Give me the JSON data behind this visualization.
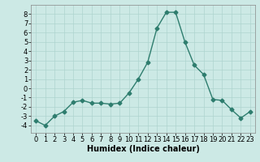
{
  "x": [
    0,
    1,
    2,
    3,
    4,
    5,
    6,
    7,
    8,
    9,
    10,
    11,
    12,
    13,
    14,
    15,
    16,
    17,
    18,
    19,
    20,
    21,
    22,
    23
  ],
  "y": [
    -3.5,
    -4.0,
    -3.0,
    -2.5,
    -1.5,
    -1.3,
    -1.6,
    -1.6,
    -1.7,
    -1.6,
    -0.5,
    1.0,
    2.8,
    6.5,
    8.2,
    8.2,
    5.0,
    2.5,
    1.5,
    -1.2,
    -1.3,
    -2.3,
    -3.2,
    -2.5
  ],
  "line_color": "#2e7d6e",
  "marker": "D",
  "markersize": 2.5,
  "linewidth": 1.0,
  "xlabel": "Humidex (Indice chaleur)",
  "ylim": [
    -4.8,
    9.0
  ],
  "yticks": [
    -4,
    -3,
    -2,
    -1,
    0,
    1,
    2,
    3,
    4,
    5,
    6,
    7,
    8
  ],
  "xticks": [
    0,
    1,
    2,
    3,
    4,
    5,
    6,
    7,
    8,
    9,
    10,
    11,
    12,
    13,
    14,
    15,
    16,
    17,
    18,
    19,
    20,
    21,
    22,
    23
  ],
  "bg_color": "#cce9e5",
  "grid_color": "#aed4cf",
  "xlabel_fontsize": 7,
  "tick_fontsize": 6
}
